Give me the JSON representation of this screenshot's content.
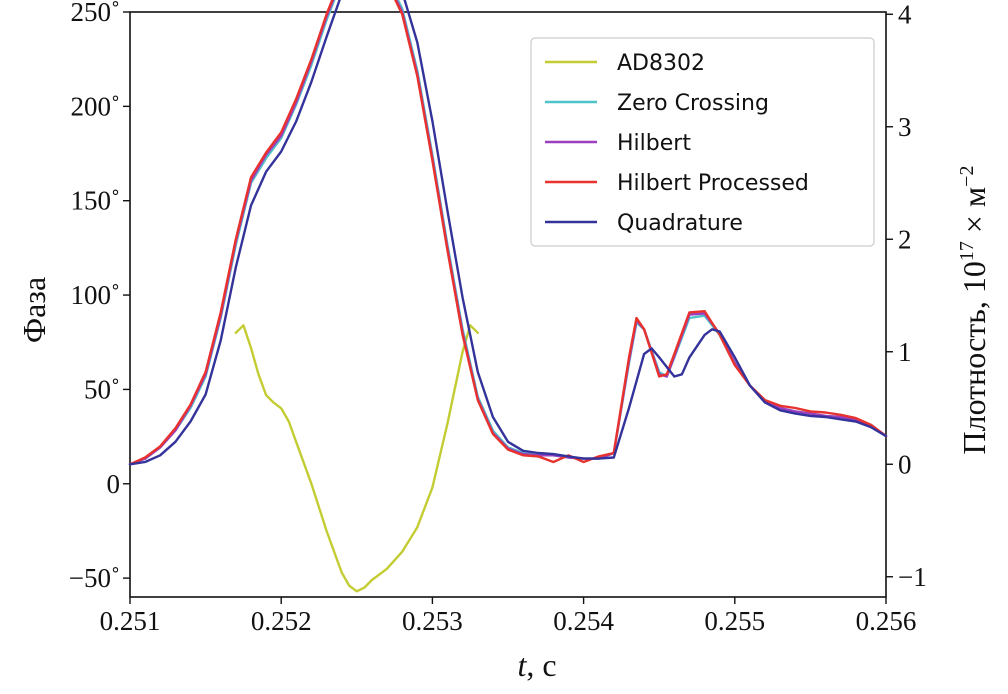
{
  "chart_data": {
    "type": "line",
    "xlabel_italic": "t",
    "xlabel_rest": ", с",
    "ylabel": "Фаза",
    "y2label_base": "Плотность, 10",
    "y2label_sup1": "17",
    "y2label_mid": " × м",
    "y2label_sup2": "−2",
    "xlim": [
      0.251,
      0.256
    ],
    "ylim": [
      -60,
      250
    ],
    "y2lim": [
      -1.18,
      4.02
    ],
    "x_ticks": [
      0.251,
      0.252,
      0.253,
      0.254,
      0.255,
      0.256
    ],
    "x_tick_labels": [
      "0.251",
      "0.252",
      "0.253",
      "0.254",
      "0.255",
      "0.256"
    ],
    "y_ticks": [
      -50,
      0,
      50,
      100,
      150,
      200,
      250
    ],
    "y_tick_labels": [
      "−50˚",
      "0",
      "50˚",
      "100˚",
      "150˚",
      "200˚",
      "250˚"
    ],
    "y2_ticks": [
      -1,
      0,
      1,
      2,
      3,
      4
    ],
    "y2_tick_labels": [
      "−1",
      "0",
      "1",
      "2",
      "3",
      "4"
    ],
    "legend_position": "upper-right",
    "series": [
      {
        "name": "AD8302",
        "color": "#c3cc32",
        "axis": "left",
        "x": [
          0.2517,
          0.25175,
          0.2518,
          0.25185,
          0.2519,
          0.25195,
          0.252,
          0.25205,
          0.2521,
          0.2522,
          0.2523,
          0.2524,
          0.25245,
          0.2525,
          0.25255,
          0.2526,
          0.2527,
          0.2528,
          0.2529,
          0.253,
          0.2531,
          0.2532,
          0.25325,
          0.2533
        ],
        "y": [
          80,
          84,
          72,
          58,
          47,
          43,
          40,
          33,
          22,
          0,
          -25,
          -47,
          -54,
          -57,
          -55,
          -51,
          -45,
          -36,
          -23,
          -2,
          32,
          70,
          84,
          80
        ]
      },
      {
        "name": "Zero Crossing",
        "color": "#4fc4c8",
        "axis": "right",
        "x": [
          0.251,
          0.2511,
          0.2512,
          0.2513,
          0.2514,
          0.2515,
          0.2516,
          0.2517,
          0.2518,
          0.2519,
          0.252,
          0.2521,
          0.2522,
          0.2523,
          0.2524,
          0.2525,
          0.2526,
          0.2527,
          0.2528,
          0.2529,
          0.253,
          0.2531,
          0.2532,
          0.2533,
          0.2534,
          0.2535,
          0.2536,
          0.2537,
          0.2538,
          0.2539,
          0.254,
          0.2541,
          0.2542,
          0.2543,
          0.25435,
          0.2544,
          0.2545,
          0.25455,
          0.2546,
          0.2547,
          0.2548,
          0.2549,
          0.255,
          0.2551,
          0.2552,
          0.2553,
          0.2554,
          0.2555,
          0.2556,
          0.2557,
          0.2558,
          0.2559,
          0.256
        ],
        "y": [
          0,
          0.05,
          0.15,
          0.3,
          0.5,
          0.78,
          1.3,
          1.95,
          2.5,
          2.72,
          2.9,
          3.2,
          3.55,
          3.95,
          4.3,
          4.5,
          4.48,
          4.32,
          4.05,
          3.5,
          2.75,
          1.95,
          1.2,
          0.6,
          0.3,
          0.15,
          0.1,
          0.08,
          0.08,
          0.06,
          0.05,
          0.05,
          0.1,
          0.9,
          1.26,
          1.2,
          0.82,
          0.78,
          0.95,
          1.3,
          1.32,
          1.15,
          0.9,
          0.7,
          0.55,
          0.5,
          0.47,
          0.45,
          0.43,
          0.42,
          0.4,
          0.35,
          0.25
        ]
      },
      {
        "name": "Hilbert",
        "color": "#9b3fc0",
        "axis": "right",
        "x": [
          0.251,
          0.2511,
          0.2512,
          0.2513,
          0.2514,
          0.2515,
          0.2516,
          0.2517,
          0.2518,
          0.2519,
          0.252,
          0.2521,
          0.2522,
          0.2523,
          0.2524,
          0.2525,
          0.2526,
          0.2527,
          0.2528,
          0.2529,
          0.253,
          0.2531,
          0.2532,
          0.2533,
          0.2534,
          0.2535,
          0.2536,
          0.2537,
          0.2538,
          0.2539,
          0.254,
          0.2541,
          0.2542,
          0.2543,
          0.25435,
          0.2544,
          0.2545,
          0.25455,
          0.2546,
          0.2547,
          0.2548,
          0.2549,
          0.255,
          0.2551,
          0.2552,
          0.2553,
          0.2554,
          0.2555,
          0.2556,
          0.2557,
          0.2558,
          0.2559,
          0.256
        ],
        "y": [
          0,
          0.05,
          0.15,
          0.3,
          0.52,
          0.8,
          1.32,
          1.98,
          2.52,
          2.75,
          2.92,
          3.22,
          3.58,
          3.98,
          4.32,
          4.49,
          4.46,
          4.3,
          4.02,
          3.47,
          2.72,
          1.92,
          1.17,
          0.58,
          0.28,
          0.14,
          0.09,
          0.08,
          0.08,
          0.06,
          0.05,
          0.05,
          0.1,
          0.92,
          1.28,
          1.2,
          0.8,
          0.78,
          0.96,
          1.33,
          1.34,
          1.16,
          0.9,
          0.7,
          0.55,
          0.5,
          0.47,
          0.45,
          0.43,
          0.42,
          0.4,
          0.35,
          0.25
        ]
      },
      {
        "name": "Hilbert Processed",
        "color": "#e8322e",
        "axis": "right",
        "x": [
          0.251,
          0.2511,
          0.2512,
          0.2513,
          0.2514,
          0.2515,
          0.2516,
          0.2517,
          0.2518,
          0.2519,
          0.252,
          0.2521,
          0.2522,
          0.2523,
          0.2524,
          0.2525,
          0.2526,
          0.2527,
          0.2528,
          0.2529,
          0.253,
          0.2531,
          0.2532,
          0.2533,
          0.2534,
          0.2535,
          0.2536,
          0.2537,
          0.2538,
          0.2539,
          0.254,
          0.2541,
          0.2542,
          0.2543,
          0.25435,
          0.2544,
          0.2545,
          0.25455,
          0.2546,
          0.2547,
          0.2548,
          0.2549,
          0.255,
          0.2551,
          0.2552,
          0.2553,
          0.2554,
          0.2555,
          0.2556,
          0.2557,
          0.2558,
          0.2559,
          0.256
        ],
        "y": [
          0,
          0.06,
          0.16,
          0.32,
          0.53,
          0.82,
          1.35,
          2.0,
          2.55,
          2.77,
          2.95,
          3.25,
          3.6,
          4.0,
          4.34,
          4.5,
          4.45,
          4.28,
          4.0,
          3.45,
          2.7,
          1.9,
          1.15,
          0.57,
          0.27,
          0.13,
          0.08,
          0.07,
          0.02,
          0.08,
          0.02,
          0.07,
          0.1,
          0.95,
          1.3,
          1.2,
          0.78,
          0.8,
          0.98,
          1.35,
          1.36,
          1.15,
          0.88,
          0.7,
          0.57,
          0.52,
          0.5,
          0.47,
          0.46,
          0.44,
          0.41,
          0.35,
          0.25
        ]
      },
      {
        "name": "Quadrature",
        "color": "#33339b",
        "axis": "right",
        "x": [
          0.251,
          0.2511,
          0.2512,
          0.2513,
          0.2514,
          0.2515,
          0.2516,
          0.2517,
          0.2518,
          0.2519,
          0.252,
          0.2521,
          0.2522,
          0.2523,
          0.2524,
          0.2525,
          0.2526,
          0.2527,
          0.2528,
          0.2529,
          0.253,
          0.2531,
          0.2532,
          0.2533,
          0.2534,
          0.2535,
          0.2536,
          0.2537,
          0.2538,
          0.2539,
          0.254,
          0.2541,
          0.2542,
          0.2543,
          0.2544,
          0.25445,
          0.2545,
          0.2546,
          0.25465,
          0.2547,
          0.2548,
          0.25485,
          0.2549,
          0.255,
          0.2551,
          0.2552,
          0.2553,
          0.2554,
          0.2555,
          0.2556,
          0.2557,
          0.2558,
          0.2559,
          0.256
        ],
        "y": [
          0,
          0.02,
          0.08,
          0.2,
          0.38,
          0.62,
          1.1,
          1.75,
          2.3,
          2.6,
          2.78,
          3.05,
          3.4,
          3.8,
          4.18,
          4.42,
          4.48,
          4.4,
          4.2,
          3.75,
          3.05,
          2.25,
          1.48,
          0.82,
          0.42,
          0.2,
          0.12,
          0.1,
          0.09,
          0.07,
          0.05,
          0.05,
          0.06,
          0.5,
          0.98,
          1.03,
          0.95,
          0.78,
          0.8,
          0.95,
          1.15,
          1.2,
          1.18,
          0.95,
          0.7,
          0.55,
          0.48,
          0.45,
          0.43,
          0.42,
          0.4,
          0.38,
          0.33,
          0.25
        ]
      }
    ]
  }
}
